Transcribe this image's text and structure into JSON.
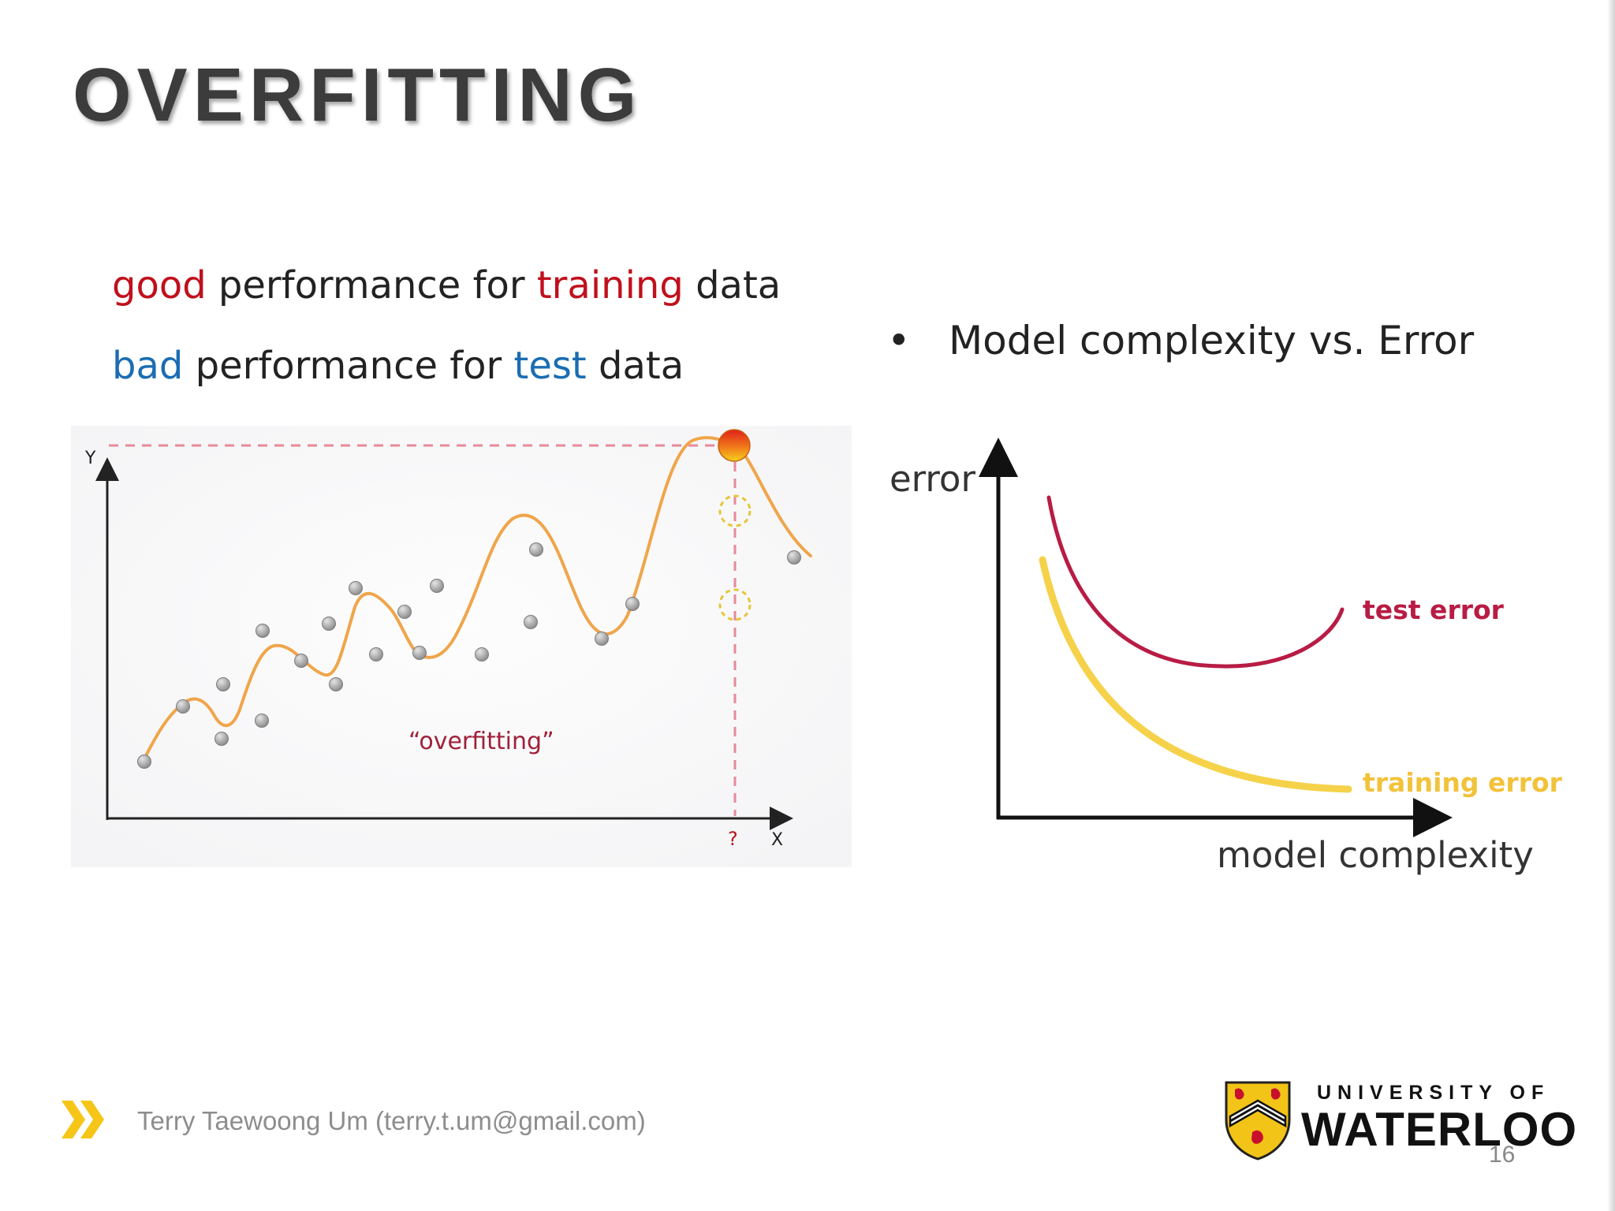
{
  "slide": {
    "title": "OVERFITTING",
    "good_line": {
      "w1": "good",
      "w2": " performance for ",
      "w3": "training",
      "w4": " data"
    },
    "bad_line": {
      "w1": "bad",
      "w2": " performance for ",
      "w3": "test",
      "w4": " data"
    },
    "bullet": {
      "symbol": "•",
      "text": "Model complexity  vs.  Error"
    }
  },
  "left_figure": {
    "y_axis_label": "Y",
    "x_axis_label": "X",
    "question_mark": "?",
    "annotation": "“overfitting”",
    "colors": {
      "curve": "#f0a54a",
      "points": "#a8a8a8",
      "guide": "#e78a98",
      "annotation": "#a0203a",
      "candidate": "#e6c63a"
    }
  },
  "right_figure": {
    "y_axis_label": "error",
    "x_axis_label": "model complexity",
    "test_label": "test error",
    "train_label": "training error",
    "colors": {
      "test": "#b81c45",
      "train": "#f6d24a"
    }
  },
  "footer": {
    "author": "Terry Taewoong Um (terry.t.um@gmail.com)",
    "logo_top": "UNIVERSITY OF",
    "logo_main": "WATERLOO",
    "page_number": "16",
    "arrow_icon": "double-chevron-icon",
    "arrow_color": "#f5c518"
  }
}
